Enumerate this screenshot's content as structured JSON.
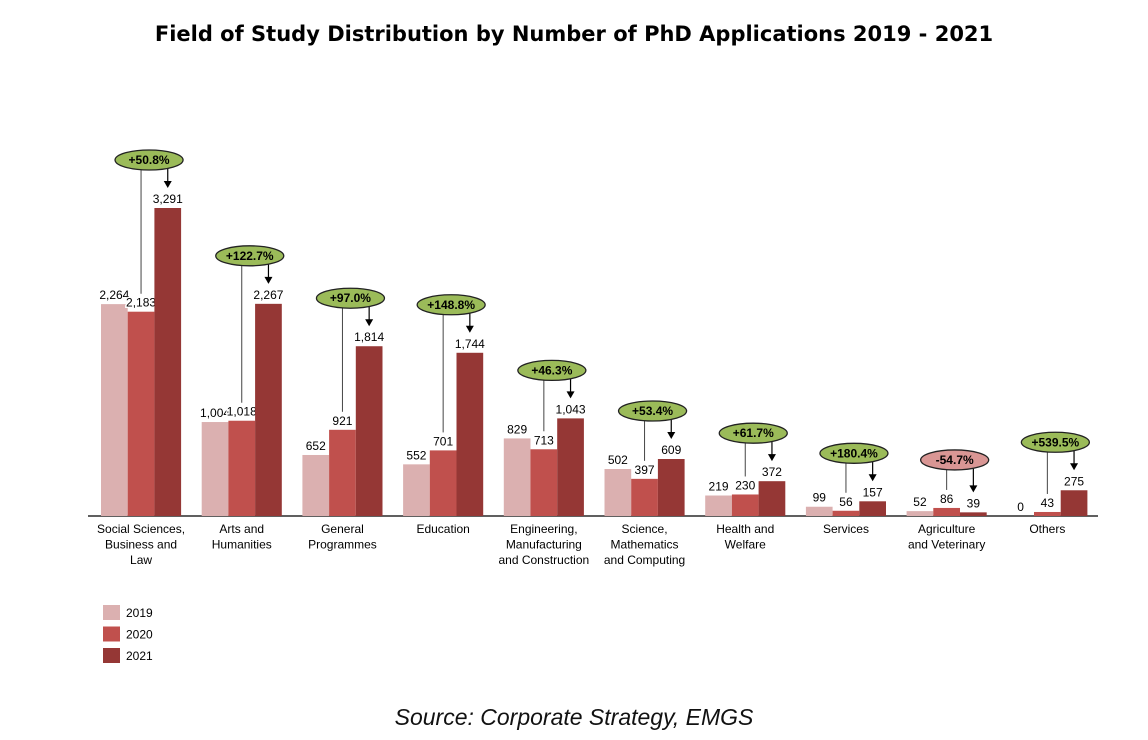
{
  "chart_data": {
    "type": "bar",
    "title": "Field of Study Distribution by Number of PhD Applications 2019 - 2021",
    "source": "Source: Corporate Strategy, EMGS",
    "categories": [
      [
        "Social Sciences,",
        "Business and",
        "Law"
      ],
      [
        "Arts and",
        "Humanities"
      ],
      [
        "General",
        "Programmes"
      ],
      [
        "Education"
      ],
      [
        "Engineering,",
        "Manufacturing",
        "and Construction"
      ],
      [
        "Science,",
        "Mathematics",
        "and Computing"
      ],
      [
        "Health and",
        "Welfare"
      ],
      [
        "Services"
      ],
      [
        "Agriculture",
        "and Veterinary"
      ],
      [
        "Others"
      ]
    ],
    "series": [
      {
        "name": "2019",
        "color": "#dbb0b0",
        "values": [
          2264,
          1004,
          652,
          552,
          829,
          502,
          219,
          99,
          52,
          0
        ],
        "labels": [
          "2,264",
          "1,004",
          "652",
          "552",
          "829",
          "502",
          "219",
          "99",
          "52",
          "0"
        ]
      },
      {
        "name": "2020",
        "color": "#c0504d",
        "values": [
          2183,
          1018,
          921,
          701,
          713,
          397,
          230,
          56,
          86,
          43
        ],
        "labels": [
          "2,183",
          "1,018",
          "921",
          "701",
          "713",
          "397",
          "230",
          "56",
          "86",
          "43"
        ]
      },
      {
        "name": "2021",
        "color": "#953735",
        "values": [
          3291,
          2267,
          1814,
          1744,
          1043,
          609,
          372,
          157,
          39,
          275
        ],
        "labels": [
          "3,291",
          "2,267",
          "1,814",
          "1,744",
          "1,043",
          "609",
          "372",
          "157",
          "39",
          "275"
        ]
      }
    ],
    "changes": [
      "+50.8%",
      "+122.7%",
      "+97.0%",
      "+148.8%",
      "+46.3%",
      "+53.4%",
      "+61.7%",
      "+180.4%",
      "-54.7%",
      "+539.5%"
    ],
    "positive_color": "#9bbb59",
    "negative_color": "#d99694",
    "ylim": [
      0,
      3400
    ],
    "grid": false,
    "legend": "bottom-left"
  }
}
